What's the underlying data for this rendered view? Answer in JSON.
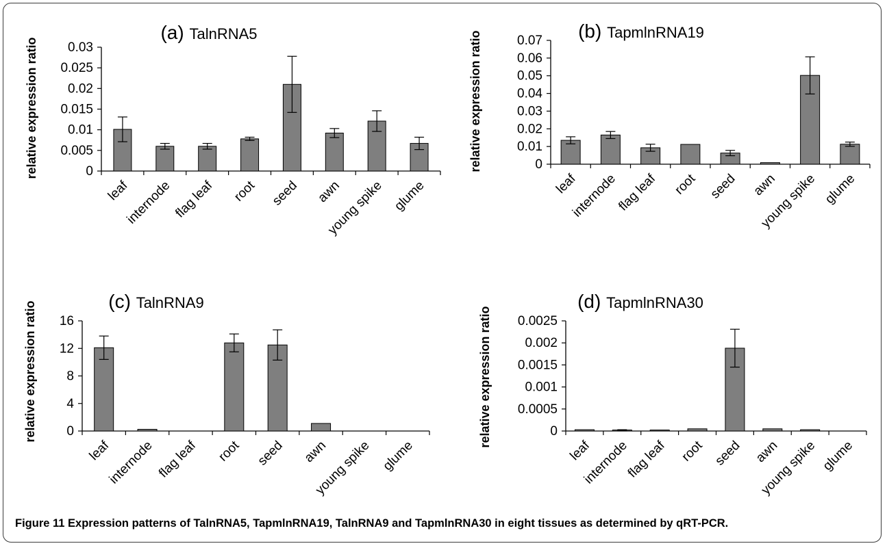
{
  "caption": {
    "label": "Figure 11",
    "text": "Expression patterns of TalnRNA5, TapmlnRNA19, TalnRNA9 and TapmlnRNA30 in eight tissues as determined by qRT-PCR."
  },
  "colors": {
    "bar": "#7f7f7f",
    "frame": "#3a3a3a"
  },
  "chart_data": [
    {
      "type": "bar",
      "panel": "(a)",
      "title": "TalnRNA5",
      "ylabel": "relative expression ratio",
      "categories": [
        "leaf",
        "internode",
        "flag leaf",
        "root",
        "seed",
        "awn",
        "young spike",
        "glume"
      ],
      "values": [
        0.0101,
        0.006,
        0.006,
        0.0078,
        0.021,
        0.0092,
        0.0121,
        0.0067
      ],
      "errors": [
        0.003,
        0.0007,
        0.0007,
        0.0004,
        0.0068,
        0.0011,
        0.0025,
        0.0015
      ],
      "ylim": [
        0,
        0.03
      ],
      "yticks": [
        0,
        0.005,
        0.01,
        0.015,
        0.02,
        0.025,
        0.03
      ],
      "ytick_labels": [
        "0",
        "0.005",
        "0.01",
        "0.015",
        "0.02",
        "0.025",
        "0.03"
      ],
      "grid": false
    },
    {
      "type": "bar",
      "panel": "(b)",
      "title": "TapmlnRNA19",
      "ylabel": "relative expression ratio",
      "categories": [
        "leaf",
        "internode",
        "flag leaf",
        "root",
        "seed",
        "awn",
        "young spike",
        "glume"
      ],
      "values": [
        0.0135,
        0.0165,
        0.0093,
        0.0112,
        0.0063,
        0.0009,
        0.0502,
        0.0113
      ],
      "errors": [
        0.002,
        0.002,
        0.002,
        0,
        0.0015,
        0,
        0.0105,
        0.0012
      ],
      "ylim": [
        0,
        0.07
      ],
      "yticks": [
        0,
        0.01,
        0.02,
        0.03,
        0.04,
        0.05,
        0.06,
        0.07
      ],
      "ytick_labels": [
        "0",
        "0.01",
        "0.02",
        "0.03",
        "0.04",
        "0.05",
        "0.06",
        "0.07"
      ],
      "grid": false
    },
    {
      "type": "bar",
      "panel": "(c)",
      "title": "TalnRNA9",
      "ylabel": "relative expression ratio",
      "categories": [
        "leaf",
        "internode",
        "flag leaf",
        "root",
        "seed",
        "awn",
        "young spike",
        "glume"
      ],
      "values": [
        12.1,
        0.25,
        0,
        12.8,
        12.5,
        1.1,
        0,
        0
      ],
      "errors": [
        1.7,
        0,
        0,
        1.3,
        2.2,
        0,
        0,
        0
      ],
      "ylim": [
        0,
        16
      ],
      "yticks": [
        0,
        4,
        8,
        12,
        16
      ],
      "ytick_labels": [
        "0",
        "4",
        "8",
        "12",
        "16"
      ],
      "grid": false
    },
    {
      "type": "bar",
      "panel": "(d)",
      "title": "TapmlnRNA30",
      "ylabel": "relative expression ratio",
      "categories": [
        "leaf",
        "internode",
        "flag leaf",
        "root",
        "seed",
        "awn",
        "young spike",
        "glume"
      ],
      "values": [
        3e-05,
        2e-05,
        1e-05,
        5e-05,
        0.00188,
        5e-05,
        3e-05,
        0
      ],
      "errors": [
        0,
        1e-05,
        0,
        0,
        0.00043,
        0,
        0,
        0
      ],
      "ylim": [
        0,
        0.0025
      ],
      "yticks": [
        0,
        0.0005,
        0.001,
        0.0015,
        0.002,
        0.0025
      ],
      "ytick_labels": [
        "0",
        "0.0005",
        "0.001",
        "0.0015",
        "0.002",
        "0.0025"
      ],
      "grid": false
    }
  ]
}
